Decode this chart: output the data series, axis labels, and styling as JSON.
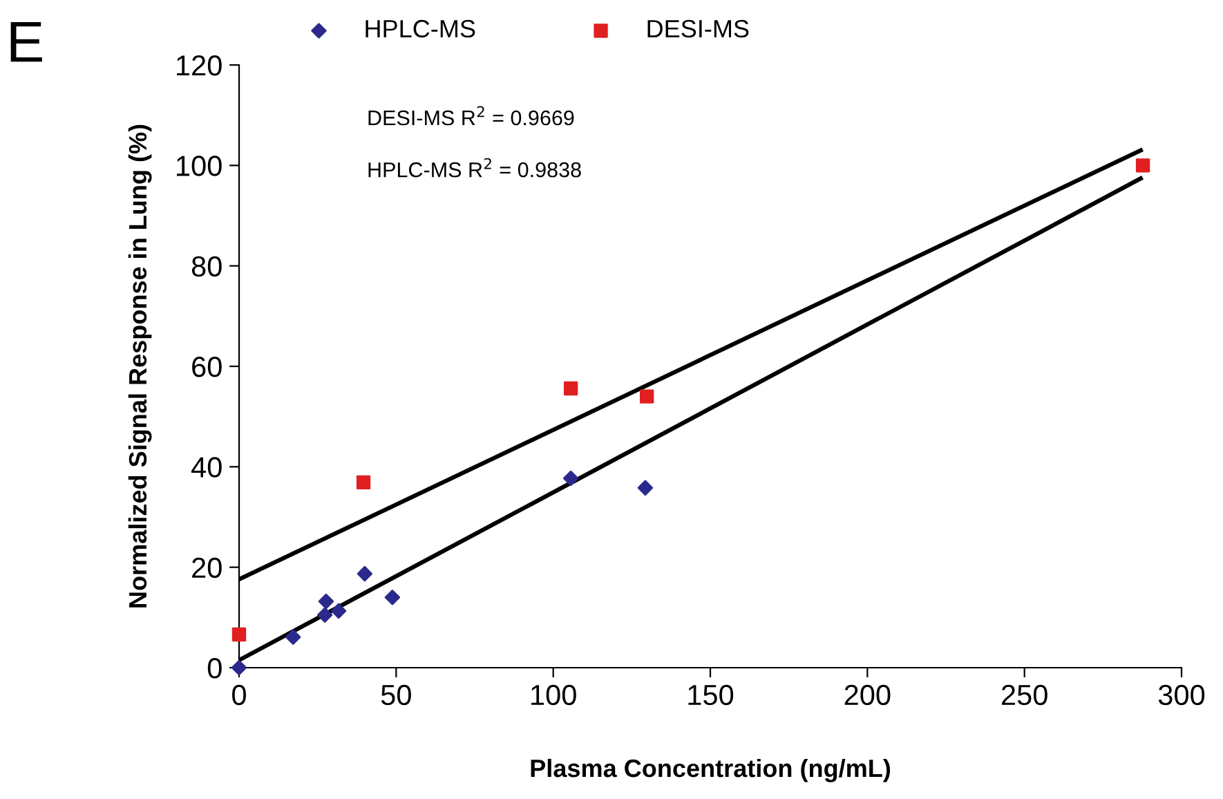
{
  "chart_data": {
    "type": "scatter",
    "xlabel": "Plasma Concentration (ng/mL)",
    "ylabel": "Normalized Signal Response in Lung (%)",
    "annotations": [
      "E",
      "DESI-MS R$^{2}$ = 0.9669",
      "HPLC-MS R$^{2}$ = 0.9838"
    ],
    "xlim": [
      0,
      300
    ],
    "xticks": [
      0,
      50,
      100,
      150,
      200,
      250,
      300
    ],
    "ylim": [
      0,
      120
    ],
    "yticks": [
      0,
      20,
      40,
      60,
      80,
      100,
      120
    ],
    "grid": false,
    "legend": "top",
    "series": [
      {
        "name": "HPLC-MS",
        "color": "#2b2a8c",
        "marker": "diamond",
        "x": [
          0,
          17.2,
          27.3,
          27.7,
          31.7,
          40,
          48.8,
          105.6,
          129.3
        ],
        "values": [
          0,
          6.1,
          10.5,
          13.2,
          11.3,
          18.7,
          14.0,
          37.7,
          35.8
        ]
      },
      {
        "name": "DESI-MS",
        "color": "#e02020",
        "marker": "square",
        "x": [
          0,
          39.6,
          105.6,
          129.8,
          287.7
        ],
        "values": [
          6.6,
          36.9,
          55.6,
          54.0,
          100
        ]
      },
      {
        "type": "line",
        "color": "#000000",
        "marker": "none",
        "x": [
          0,
          287
        ],
        "values": [
          17.6,
          103
        ]
      },
      {
        "type": "line",
        "color": "#000000",
        "marker": "none",
        "x": [
          0,
          287
        ],
        "values": [
          1.5,
          97.4
        ]
      }
    ]
  }
}
